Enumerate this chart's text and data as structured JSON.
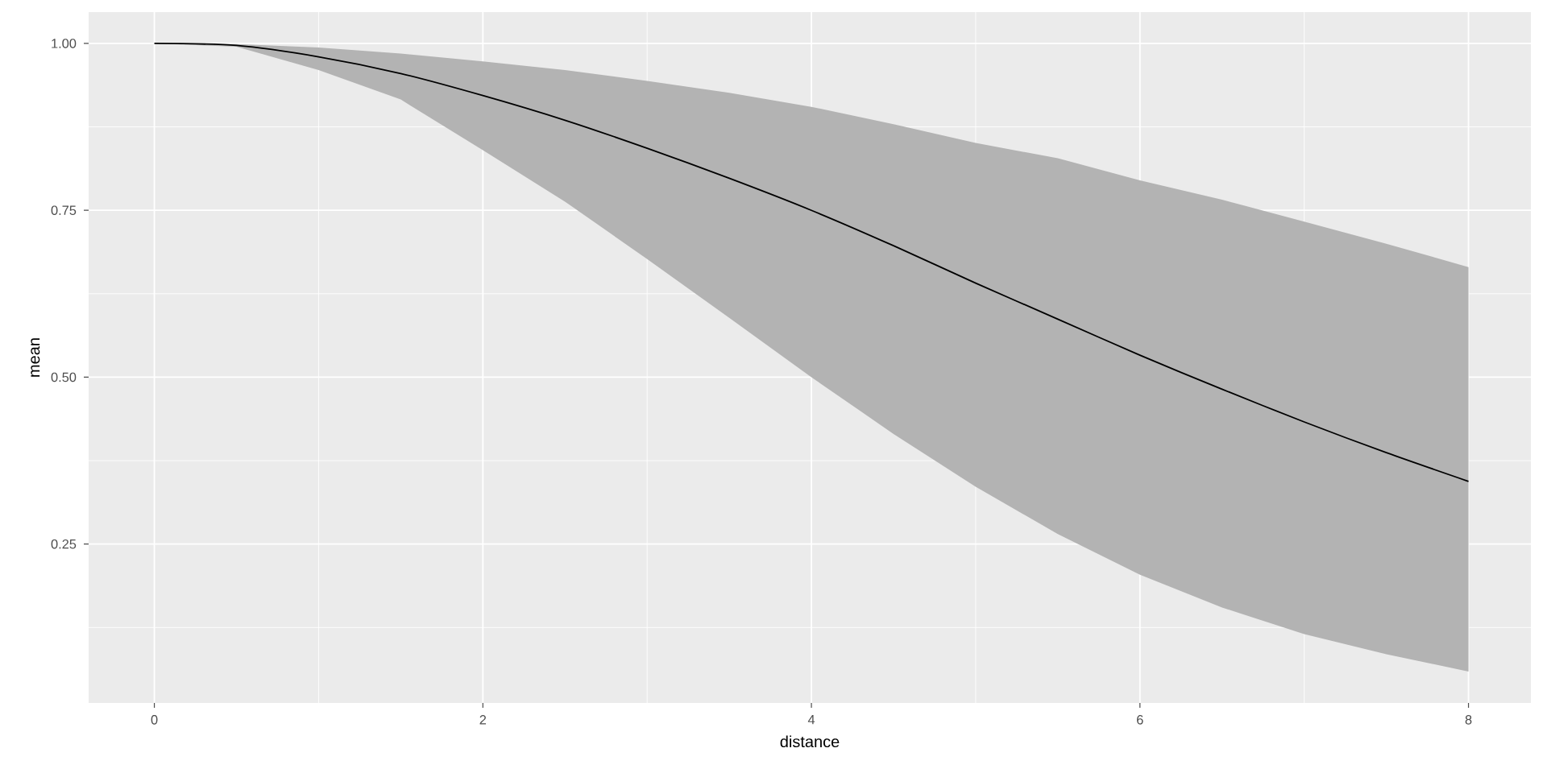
{
  "chart_data": {
    "type": "line",
    "xlabel": "distance",
    "ylabel": "mean",
    "x": [
      0,
      0.5,
      1,
      1.5,
      2,
      2.5,
      3,
      3.5,
      4,
      4.5,
      5,
      5.5,
      6,
      6.5,
      7,
      7.5,
      8
    ],
    "series": [
      {
        "color": "#000000",
        "values": [
          1.0,
          0.997,
          0.98,
          0.955,
          0.922,
          0.885,
          0.843,
          0.798,
          0.75,
          0.697,
          0.641,
          0.587,
          0.533,
          0.482,
          0.433,
          0.387,
          0.344
        ],
        "lower": [
          1.0,
          0.995,
          0.96,
          0.916,
          0.84,
          0.763,
          0.677,
          0.589,
          0.5,
          0.415,
          0.336,
          0.265,
          0.204,
          0.155,
          0.115,
          0.085,
          0.059
        ],
        "upper": [
          1.0,
          0.999,
          0.994,
          0.985,
          0.973,
          0.96,
          0.944,
          0.926,
          0.905,
          0.879,
          0.851,
          0.828,
          0.795,
          0.766,
          0.733,
          0.7,
          0.665
        ]
      }
    ],
    "xlim": [
      -0.4,
      8.38
    ],
    "ylim": [
      0.012,
      1.047
    ],
    "xticks": [
      0,
      2,
      4,
      6,
      8
    ],
    "yticks": [
      {
        "value": 0.25,
        "label": "0.25"
      },
      {
        "value": 0.5,
        "label": "0.50"
      },
      {
        "value": 0.75,
        "label": "0.75"
      },
      {
        "value": 1.0,
        "label": "1.00"
      }
    ],
    "grid": true
  }
}
